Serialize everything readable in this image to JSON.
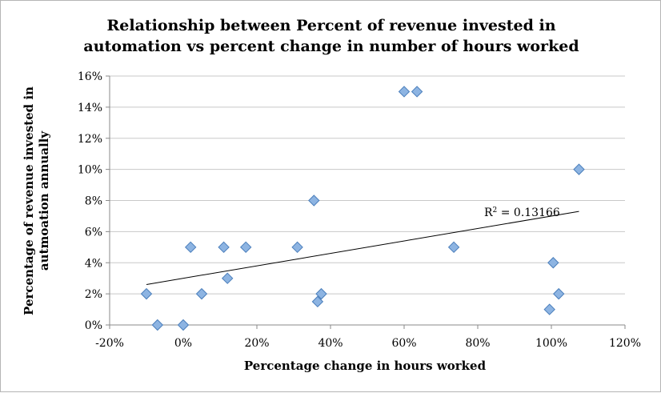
{
  "chart_data": {
    "type": "scatter",
    "title_lines": [
      "Relationship between Percent of revenue invested in",
      "automation vs percent change in number of hours worked"
    ],
    "xlabel": "Percentage change in hours worked",
    "ylabel_lines": [
      "Percentage of revenue invested in",
      "autmoation annually"
    ],
    "xlim": [
      -0.2,
      1.2
    ],
    "ylim": [
      0,
      0.16
    ],
    "x_ticks": [
      -0.2,
      0,
      0.2,
      0.4,
      0.6,
      0.8,
      1.0,
      1.2
    ],
    "x_tick_labels": [
      "-20%",
      "0%",
      "20%",
      "40%",
      "60%",
      "80%",
      "100%",
      "120%"
    ],
    "y_ticks": [
      0,
      0.02,
      0.04,
      0.06,
      0.08,
      0.1,
      0.12,
      0.14,
      0.16
    ],
    "y_tick_labels": [
      "0%",
      "2%",
      "4%",
      "6%",
      "8%",
      "10%",
      "12%",
      "14%",
      "16%"
    ],
    "grid": "horizontal",
    "marker_color": "#8db4e2",
    "marker_stroke": "#4a7ebb",
    "points": [
      {
        "x": -0.1,
        "y": 0.02
      },
      {
        "x": -0.07,
        "y": 0.0
      },
      {
        "x": 0.0,
        "y": 0.0
      },
      {
        "x": 0.02,
        "y": 0.05
      },
      {
        "x": 0.05,
        "y": 0.02
      },
      {
        "x": 0.11,
        "y": 0.05
      },
      {
        "x": 0.12,
        "y": 0.03
      },
      {
        "x": 0.17,
        "y": 0.05
      },
      {
        "x": 0.31,
        "y": 0.05
      },
      {
        "x": 0.355,
        "y": 0.08
      },
      {
        "x": 0.365,
        "y": 0.015
      },
      {
        "x": 0.375,
        "y": 0.02
      },
      {
        "x": 0.6,
        "y": 0.15
      },
      {
        "x": 0.635,
        "y": 0.15
      },
      {
        "x": 0.735,
        "y": 0.05
      },
      {
        "x": 0.995,
        "y": 0.01
      },
      {
        "x": 1.005,
        "y": 0.04
      },
      {
        "x": 1.02,
        "y": 0.02
      },
      {
        "x": 1.075,
        "y": 0.1
      }
    ],
    "trendline": {
      "x": [
        -0.1,
        1.075
      ],
      "y": [
        0.026,
        0.073
      ]
    },
    "r2_prefix": "R",
    "r2_sup": "2",
    "r2_value": " = 0.13166"
  }
}
